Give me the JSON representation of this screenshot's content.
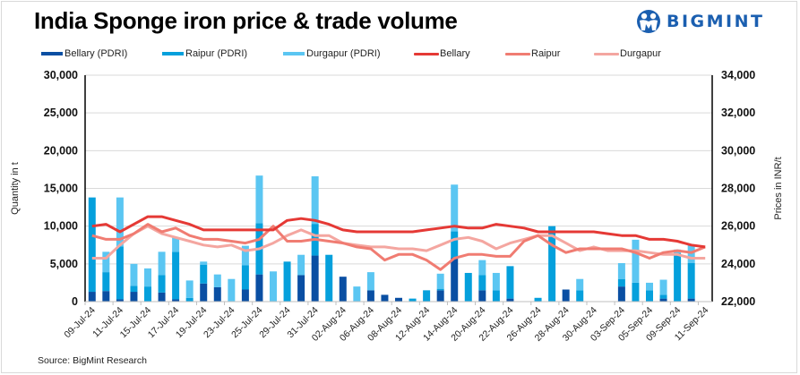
{
  "header": {
    "title": "India Sponge iron price & trade volume",
    "logo_text": "BIGMINT",
    "logo_icon": "bigmint-people-icon"
  },
  "footer": {
    "source": "Source: BigMint Research"
  },
  "colors": {
    "bellary_pdri": "#0a4fa3",
    "raipur_pdri": "#05a0dc",
    "durgapur_pdri": "#5bc6f2",
    "bellary": "#e53935",
    "raipur": "#f07c72",
    "durgapur": "#f4a6a0",
    "grid": "#d9d9d9"
  },
  "chart_data": {
    "type": "bar",
    "title": "India Sponge iron price & trade volume",
    "xlabel": "",
    "ylabel": "Quantity in t",
    "y2label": "Prices in INR/t",
    "ylim": [
      0,
      30000
    ],
    "y2lim": [
      22000,
      34000
    ],
    "yticks": [
      "0",
      "5,000",
      "10,000",
      "15,000",
      "20,000",
      "25,000",
      "30,000"
    ],
    "y2ticks": [
      "22,000",
      "24,000",
      "26,000",
      "28,000",
      "30,000",
      "32,000",
      "34,000"
    ],
    "grid": true,
    "legend_position": "top",
    "x_tick_labels": [
      "09-Jul-24",
      "11-Jul-24",
      "15-Jul-24",
      "17-Jul-24",
      "19-Jul-24",
      "23-Jul-24",
      "25-Jul-24",
      "29-Jul-24",
      "31-Jul-24",
      "02-Aug-24",
      "06-Aug-24",
      "08-Aug-24",
      "12-Aug-24",
      "14-Aug-24",
      "20-Aug-24",
      "22-Aug-24",
      "26-Aug-24",
      "28-Aug-24",
      "30-Aug-24",
      "03-Sep-24",
      "05-Sep-24",
      "09-Sep-24",
      "11-Sep-24"
    ],
    "legend": [
      "Bellary (PDRI)",
      "Raipur (PDRI)",
      "Durgapur (PDRI)",
      "Bellary",
      "Raipur",
      "Durgapur"
    ],
    "stacked_series": [
      {
        "name": "Bellary (PDRI)",
        "axis": "left",
        "values": [
          1300,
          1400,
          300,
          1300,
          0,
          1200,
          300,
          0,
          2400,
          1900,
          0,
          1600,
          3600,
          0,
          0,
          3500,
          6100,
          0,
          3300,
          0,
          1500,
          900,
          500,
          0,
          0,
          1500,
          5800,
          0,
          1500,
          0,
          400,
          0,
          0,
          0,
          1600,
          0,
          0,
          0,
          2000,
          0,
          0,
          400,
          0,
          400,
          0
        ]
      },
      {
        "name": "Raipur (PDRI)",
        "axis": "left",
        "values": [
          12500,
          2500,
          7000,
          800,
          2000,
          2300,
          6300,
          500,
          2500,
          0,
          0,
          3200,
          6800,
          0,
          5300,
          0,
          4200,
          6200,
          0,
          0,
          0,
          0,
          0,
          400,
          1500,
          200,
          3500,
          3800,
          2000,
          1500,
          4300,
          0,
          500,
          10000,
          0,
          1500,
          0,
          0,
          1000,
          2500,
          1500,
          500,
          6400,
          4700,
          0
        ]
      },
      {
        "name": "Durgapur (PDRI)",
        "axis": "left",
        "values": [
          0,
          2700,
          6500,
          2900,
          2400,
          3100,
          1900,
          2300,
          400,
          1700,
          3000,
          2600,
          6300,
          4000,
          0,
          2700,
          6300,
          0,
          0,
          2000,
          2400,
          0,
          0,
          0,
          0,
          2000,
          6200,
          0,
          2000,
          2300,
          0,
          0,
          0,
          0,
          0,
          1500,
          0,
          0,
          2100,
          5700,
          1000,
          2000,
          500,
          2400,
          0
        ]
      }
    ],
    "line_series": [
      {
        "name": "Bellary",
        "axis": "right",
        "values": [
          26000,
          26100,
          25700,
          26100,
          26500,
          26500,
          26300,
          26100,
          25800,
          25800,
          25800,
          25800,
          25800,
          25800,
          26300,
          26400,
          26300,
          26100,
          25800,
          25700,
          25700,
          25700,
          25700,
          25700,
          25800,
          25900,
          26000,
          25900,
          25900,
          26100,
          26000,
          25900,
          25700,
          25700,
          25700,
          25700,
          25700,
          25600,
          25500,
          25500,
          25300,
          25300,
          25200,
          25000,
          24900
        ]
      },
      {
        "name": "Raipur",
        "axis": "right",
        "values": [
          25500,
          25300,
          25300,
          25600,
          26100,
          25700,
          25900,
          25500,
          25300,
          25300,
          25200,
          25100,
          25300,
          26000,
          25200,
          25200,
          25300,
          25200,
          25100,
          24900,
          24800,
          24200,
          24500,
          24500,
          24200,
          23700,
          24300,
          24500,
          24500,
          24400,
          24400,
          25200,
          25500,
          25000,
          24600,
          24800,
          24800,
          24800,
          24800,
          24600,
          24300,
          24600,
          24700,
          24600,
          24900
        ]
      },
      {
        "name": "Durgapur",
        "axis": "right",
        "values": [
          24300,
          24300,
          25000,
          25600,
          26000,
          25600,
          25400,
          25200,
          25000,
          24900,
          25000,
          24700,
          24800,
          25100,
          25500,
          25800,
          25500,
          25500,
          25100,
          25000,
          24900,
          24900,
          24800,
          24800,
          24700,
          25000,
          25300,
          25400,
          25200,
          24800,
          25100,
          25300,
          25500,
          25500,
          25100,
          24700,
          24900,
          24700,
          24700,
          24700,
          24600,
          24500,
          24500,
          24300,
          24300
        ]
      }
    ]
  }
}
